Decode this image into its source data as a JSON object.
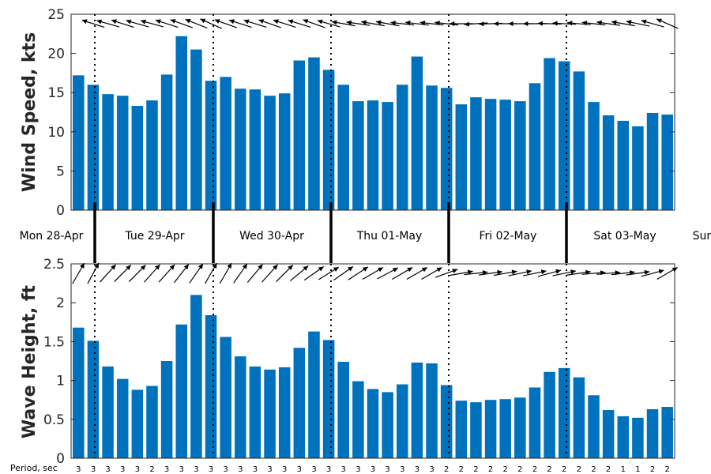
{
  "chart_data": [
    {
      "type": "bar",
      "ylabel": "Wind Speed, kts",
      "ylim": [
        0,
        25
      ],
      "yticks": [
        0,
        5,
        10,
        15,
        20,
        25
      ],
      "values": [
        17.2,
        16.0,
        14.8,
        14.6,
        13.3,
        14.0,
        17.3,
        22.2,
        20.5,
        16.5,
        17.0,
        15.5,
        15.4,
        14.6,
        14.9,
        19.1,
        19.5,
        17.9,
        16.0,
        13.9,
        14.0,
        13.8,
        16.0,
        19.6,
        15.9,
        15.6,
        13.5,
        14.4,
        14.2,
        14.1,
        13.9,
        16.2,
        19.4,
        19.0,
        17.7,
        13.8,
        12.1,
        11.4,
        10.7,
        12.4,
        12.2
      ],
      "bar_color": "#0072BD",
      "direction_arrows": "pointing-left (wind from east/northeast)"
    },
    {
      "type": "bar",
      "ylabel": "Wave Height, ft",
      "ylim": [
        0,
        2.5
      ],
      "yticks": [
        "0",
        "0.5",
        "1",
        "1.5",
        "2",
        "2.5"
      ],
      "values": [
        1.68,
        1.51,
        1.18,
        1.02,
        0.88,
        0.93,
        1.25,
        1.72,
        2.1,
        1.84,
        1.56,
        1.31,
        1.18,
        1.14,
        1.17,
        1.42,
        1.63,
        1.52,
        1.24,
        0.99,
        0.89,
        0.85,
        0.95,
        1.23,
        1.22,
        0.94,
        0.74,
        0.72,
        0.75,
        0.76,
        0.78,
        0.91,
        1.11,
        1.16,
        1.04,
        0.81,
        0.62,
        0.54,
        0.52,
        0.63,
        0.66
      ],
      "bar_color": "#0072BD",
      "period_label": "Period, sec",
      "periods": [
        "3",
        "3",
        "3",
        "3",
        "3",
        "2",
        "3",
        "3",
        "3",
        "3",
        "3",
        "3",
        "3",
        "3",
        "3",
        "3",
        "3",
        "3",
        "3",
        "3",
        "3",
        "3",
        "3",
        "3",
        "3",
        "2",
        "2",
        "2",
        "2",
        "2",
        "2",
        "2",
        "2",
        "2",
        "2",
        "2",
        "2",
        "1",
        "1",
        "2",
        "2"
      ]
    }
  ],
  "days": [
    "Mon 28-Apr",
    "Tue 29-Apr",
    "Wed 30-Apr",
    "Thu 01-May",
    "Fri 02-May",
    "Sat 03-May",
    "Sun"
  ],
  "wind_arrow_angles": [
    200,
    198,
    196,
    198,
    196,
    195,
    198,
    200,
    202,
    204,
    200,
    198,
    197,
    199,
    198,
    197,
    200,
    196,
    190,
    188,
    190,
    190,
    186,
    187,
    186,
    186,
    180,
    176,
    178,
    180,
    180,
    180,
    182,
    183,
    185,
    186,
    188,
    190,
    192,
    196,
    204
  ],
  "wave_arrow_angles": [
    -60,
    -62,
    -48,
    -45,
    -45,
    -48,
    -48,
    -52,
    -55,
    -60,
    -60,
    -55,
    -50,
    -48,
    -45,
    -40,
    -35,
    -32,
    -35,
    -33,
    -30,
    -28,
    -30,
    -30,
    -30,
    -20,
    -10,
    -6,
    -8,
    -10,
    -12,
    -12,
    -15,
    -12,
    -8,
    -5,
    -5,
    -6,
    -8,
    -15,
    -30
  ]
}
